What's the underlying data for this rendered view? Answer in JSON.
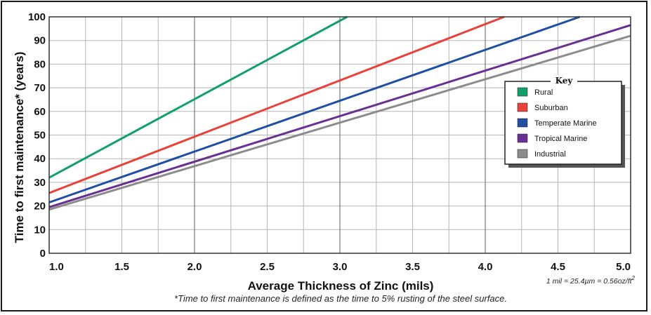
{
  "chart_data": {
    "type": "line",
    "xlabel": "Average Thickness of Zinc (mils)",
    "ylabel": "Time to first maintenance* (years)",
    "xlim": [
      1.0,
      5.0
    ],
    "ylim": [
      0,
      100
    ],
    "x_ticks": [
      "1.0",
      "1.5",
      "2.0",
      "2.5",
      "3.0",
      "3.5",
      "4.0",
      "4.5",
      "5.0"
    ],
    "y_ticks": [
      "0",
      "10",
      "20",
      "30",
      "40",
      "50",
      "60",
      "70",
      "80",
      "90",
      "100"
    ],
    "grid": true,
    "legend": {
      "title": "Key",
      "placement": "right"
    },
    "series": [
      {
        "name": "Rural",
        "color": "#12a06a",
        "points": [
          [
            1.0,
            32
          ],
          [
            3.05,
            100
          ]
        ]
      },
      {
        "name": "Suburban",
        "color": "#e8423a",
        "points": [
          [
            1.0,
            25.5
          ],
          [
            4.13,
            100
          ]
        ]
      },
      {
        "name": "Temperate Marine",
        "color": "#1f4fa3",
        "points": [
          [
            1.0,
            21.5
          ],
          [
            4.65,
            100
          ]
        ]
      },
      {
        "name": "Tropical Marine",
        "color": "#6a2f92",
        "points": [
          [
            1.0,
            19.5
          ],
          [
            5.0,
            96.5
          ]
        ]
      },
      {
        "name": "Industrial",
        "color": "#8c8c8c",
        "points": [
          [
            1.0,
            18.5
          ],
          [
            5.0,
            92
          ]
        ]
      }
    ],
    "annotations": {
      "unit_note": "1 mil = 25.4µm = 0.56oz/ft",
      "unit_note_sup": "2",
      "footnote": "*Time to first maintenance is defined as the time to 5% rusting of the steel surface."
    }
  }
}
